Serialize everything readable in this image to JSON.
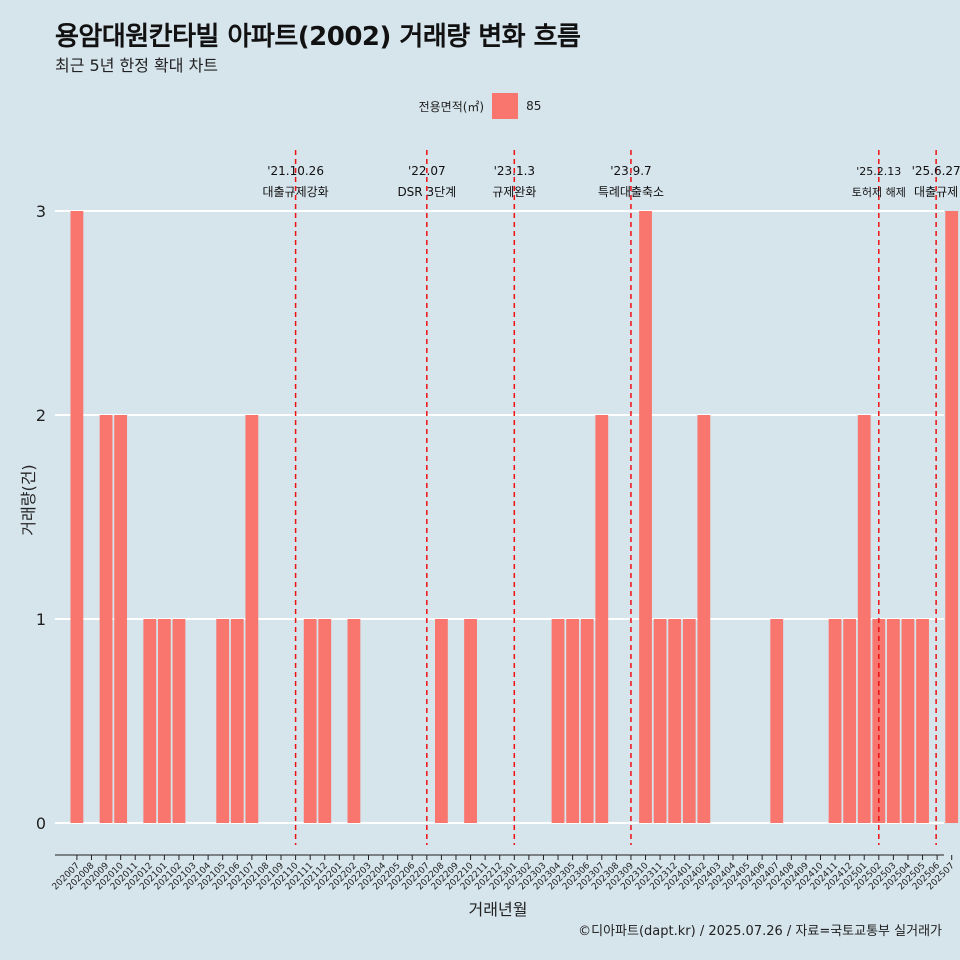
{
  "title": "용암대원칸타빌 아파트(2002) 거래량 변화 흐름",
  "subtitle": "최근 5년 한정 확대 차트",
  "legend": {
    "title": "전용면적(㎡)",
    "item": "85"
  },
  "caption": "©디아파트(dapt.kr) / 2025.07.26 / 자료=국토교통부 실거래가",
  "colors": {
    "bar": "#f8766d",
    "event_line": "#ee1111",
    "background": "#d6e4ec",
    "grid": "#ffffff"
  },
  "chart_data": {
    "type": "bar",
    "title": "용암대원칸타빌 아파트(2002) 거래량 변화 흐름",
    "xlabel": "거래년월",
    "ylabel": "거래량(건)",
    "ylim": [
      0,
      3
    ],
    "yticks": [
      0,
      1,
      2,
      3
    ],
    "grid": true,
    "legend_position": "top",
    "categories": [
      "202007",
      "202008",
      "202009",
      "202010",
      "202011",
      "202012",
      "202101",
      "202102",
      "202103",
      "202104",
      "202105",
      "202106",
      "202107",
      "202108",
      "202109",
      "202110",
      "202111",
      "202112",
      "202201",
      "202202",
      "202203",
      "202204",
      "202205",
      "202206",
      "202207",
      "202208",
      "202209",
      "202210",
      "202211",
      "202212",
      "202301",
      "202302",
      "202303",
      "202304",
      "202305",
      "202306",
      "202307",
      "202308",
      "202309",
      "202310",
      "202311",
      "202312",
      "202401",
      "202402",
      "202403",
      "202404",
      "202405",
      "202406",
      "202407",
      "202408",
      "202409",
      "202410",
      "202411",
      "202412",
      "202501",
      "202502",
      "202503",
      "202504",
      "202505",
      "202506",
      "202507"
    ],
    "series": [
      {
        "name": "85",
        "values": [
          3,
          0,
          2,
          2,
          0,
          1,
          1,
          1,
          0,
          0,
          1,
          1,
          2,
          0,
          0,
          0,
          1,
          1,
          0,
          1,
          0,
          0,
          0,
          0,
          0,
          1,
          0,
          1,
          0,
          0,
          0,
          0,
          0,
          1,
          1,
          1,
          2,
          0,
          0,
          3,
          1,
          1,
          1,
          2,
          0,
          0,
          0,
          0,
          1,
          0,
          0,
          0,
          1,
          1,
          2,
          1,
          1,
          1,
          1,
          0,
          3
        ]
      }
    ],
    "events": [
      {
        "x": "202110",
        "date": "'21.10.26",
        "label": "대출규제강화"
      },
      {
        "x": "202207",
        "date": "'22.07",
        "label": "DSR 3단계"
      },
      {
        "x": "202301",
        "date": "'23.1.3",
        "label": "규제완화"
      },
      {
        "x": "202309",
        "date": "'23.9.7",
        "label": "특례대출축소"
      },
      {
        "x": "202502",
        "date": "'25.2.13",
        "label": "토허제 해제"
      },
      {
        "x": "202506",
        "date": "'25.6.27",
        "label": "대출규제"
      }
    ]
  }
}
